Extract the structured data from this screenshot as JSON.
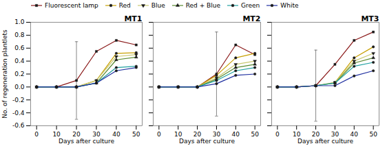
{
  "chart_data": [
    {
      "type": "line",
      "title": "MT1",
      "xlabel": "Days after culture",
      "ylabel": "No. of regeneration plantlets",
      "x": [
        0,
        10,
        20,
        30,
        40,
        50
      ],
      "series": [
        {
          "name": "Fluorescent lamp",
          "color": "#8B1A1A",
          "marker": "square",
          "values": [
            0.0,
            0.0,
            0.1,
            0.55,
            0.72,
            0.65
          ],
          "yerr": [
            null,
            null,
            0.6,
            null,
            null,
            null
          ]
        },
        {
          "name": "Red",
          "color": "#C8A000",
          "marker": "circle",
          "values": [
            0.0,
            0.0,
            0.0,
            0.1,
            0.52,
            0.53
          ]
        },
        {
          "name": "Blue",
          "color": "#C8C870",
          "marker": "triangle-down",
          "values": [
            0.0,
            0.0,
            0.0,
            0.1,
            0.47,
            0.5
          ]
        },
        {
          "name": "Red + Blue",
          "color": "#5A8A30",
          "marker": "triangle-up",
          "values": [
            0.0,
            0.0,
            0.0,
            0.06,
            0.42,
            0.46
          ]
        },
        {
          "name": "Green",
          "color": "#20A0A0",
          "marker": "circle",
          "values": [
            0.0,
            0.0,
            0.0,
            0.06,
            0.3,
            0.32
          ]
        },
        {
          "name": "White",
          "color": "#2030A0",
          "marker": "circle",
          "values": [
            0.0,
            0.0,
            0.0,
            0.06,
            0.25,
            0.3
          ]
        }
      ],
      "xlim": [
        -3,
        53
      ],
      "xticks": [
        0,
        10,
        20,
        30,
        40,
        50
      ],
      "ylim": [
        -0.6,
        1.0
      ],
      "yticks": [
        -0.6,
        -0.4,
        -0.2,
        {
          "value": 0,
          "label": "0.0"
        },
        0.2,
        0.4,
        0.6,
        0.8,
        {
          "value": 1,
          "label": "1.0"
        }
      ],
      "legend": "upper left",
      "grid": false
    },
    {
      "type": "line",
      "title": "MT2",
      "xlabel": "Days after culture",
      "x": [
        0,
        10,
        20,
        30,
        40,
        50
      ],
      "series": [
        {
          "name": "Fluorescent lamp",
          "color": "#8B1A1A",
          "marker": "square",
          "values": [
            0.0,
            0.0,
            0.0,
            0.2,
            0.65,
            0.5
          ],
          "yerr": [
            null,
            null,
            null,
            0.65,
            null,
            null
          ]
        },
        {
          "name": "Red",
          "color": "#C8A000",
          "marker": "circle",
          "values": [
            0.0,
            0.0,
            0.0,
            0.18,
            0.45,
            0.52
          ]
        },
        {
          "name": "Blue",
          "color": "#C8C870",
          "marker": "triangle-down",
          "values": [
            0.0,
            0.0,
            0.0,
            0.14,
            0.35,
            0.4
          ]
        },
        {
          "name": "Red + Blue",
          "color": "#5A8A30",
          "marker": "triangle-up",
          "values": [
            0.0,
            0.0,
            0.0,
            0.12,
            0.3,
            0.35
          ]
        },
        {
          "name": "Green",
          "color": "#20A0A0",
          "marker": "circle",
          "values": [
            0.0,
            0.0,
            0.0,
            0.1,
            0.25,
            0.3
          ]
        },
        {
          "name": "White",
          "color": "#2030A0",
          "marker": "circle",
          "values": [
            0.0,
            0.0,
            0.0,
            0.05,
            0.18,
            0.2
          ]
        }
      ],
      "xlim": [
        -3,
        53
      ],
      "xticks": [
        0,
        10,
        20,
        30,
        40,
        50
      ],
      "ylim": [
        -0.6,
        1.0
      ],
      "yticks": [
        -0.6,
        -0.4,
        -0.2,
        0,
        0.2,
        0.4,
        0.6,
        0.8,
        1
      ],
      "tick_labels": "x",
      "grid": false
    },
    {
      "type": "line",
      "title": "MT3",
      "xlabel": "Days after culture",
      "x": [
        0,
        10,
        20,
        30,
        40,
        50
      ],
      "series": [
        {
          "name": "Fluorescent lamp",
          "color": "#8B1A1A",
          "marker": "square",
          "values": [
            0.0,
            0.0,
            0.02,
            0.35,
            0.72,
            0.85
          ],
          "yerr": [
            null,
            null,
            0.55,
            null,
            null,
            null
          ]
        },
        {
          "name": "Red",
          "color": "#C8A000",
          "marker": "circle",
          "values": [
            0.0,
            0.0,
            0.02,
            0.07,
            0.45,
            0.62
          ]
        },
        {
          "name": "Blue",
          "color": "#C8C870",
          "marker": "triangle-down",
          "values": [
            0.0,
            0.0,
            0.02,
            0.07,
            0.4,
            0.52
          ]
        },
        {
          "name": "Red + Blue",
          "color": "#5A8A30",
          "marker": "triangle-up",
          "values": [
            0.0,
            0.0,
            0.02,
            0.06,
            0.37,
            0.45
          ]
        },
        {
          "name": "Green",
          "color": "#20A0A0",
          "marker": "circle",
          "values": [
            0.0,
            0.0,
            0.02,
            0.06,
            0.32,
            0.38
          ]
        },
        {
          "name": "White",
          "color": "#2030A0",
          "marker": "circle",
          "values": [
            0.0,
            0.0,
            0.02,
            0.02,
            0.17,
            0.25
          ]
        }
      ],
      "xlim": [
        -3,
        53
      ],
      "xticks": [
        0,
        10,
        20,
        30,
        40,
        50
      ],
      "ylim": [
        -0.6,
        1.0
      ],
      "yticks": [
        -0.6,
        -0.4,
        -0.2,
        0,
        0.2,
        0.4,
        0.6,
        0.8,
        1
      ],
      "tick_labels": "x",
      "grid": false
    }
  ]
}
